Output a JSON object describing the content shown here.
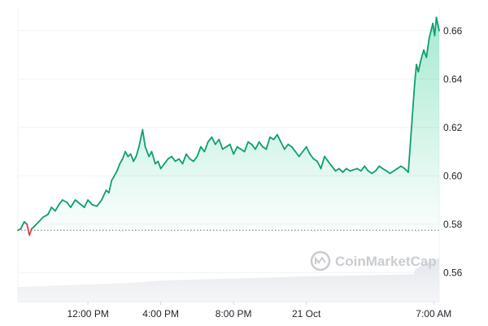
{
  "chart_data": {
    "type": "area",
    "title": "",
    "xlabel": "",
    "ylabel": "",
    "x_ticks": [
      "12:00 PM",
      "4:00 PM",
      "8:00 PM",
      "21 Oct",
      "7:00 AM"
    ],
    "x_tick_hours": [
      12,
      16,
      20,
      24,
      31
    ],
    "x_range_hours": [
      8.15,
      31.3
    ],
    "y_ticks": [
      "0.56",
      "0.58",
      "0.60",
      "0.62",
      "0.64",
      "0.66"
    ],
    "ylim": [
      0.548,
      0.67
    ],
    "baseline": 0.5775,
    "grid": true,
    "colors": {
      "up": "#16c784",
      "down": "#ea3943",
      "line_up": "#0e9f6e"
    },
    "series": [
      {
        "x": [
          8.15,
          8.3,
          8.5,
          8.65,
          8.78,
          8.9,
          9.1,
          9.3,
          9.55,
          9.8,
          10.0,
          10.2,
          10.4,
          10.6,
          10.85,
          11.05,
          11.3,
          11.55,
          11.8,
          12.0,
          12.25,
          12.5,
          12.75,
          13.0,
          13.15,
          13.3,
          13.45,
          13.6,
          13.75,
          13.9,
          14.05,
          14.2,
          14.35,
          14.5,
          14.65,
          14.8,
          15.0,
          15.15,
          15.35,
          15.5,
          15.7,
          15.85,
          16.0,
          16.2,
          16.4,
          16.6,
          16.8,
          17.0,
          17.2,
          17.4,
          17.6,
          17.8,
          18.0,
          18.2,
          18.4,
          18.6,
          18.8,
          19.0,
          19.2,
          19.4,
          19.6,
          19.8,
          20.0,
          20.2,
          20.4,
          20.6,
          20.8,
          21.0,
          21.2,
          21.4,
          21.6,
          21.8,
          22.0,
          22.2,
          22.4,
          22.6,
          22.8,
          23.0,
          23.2,
          23.4,
          23.6,
          23.8,
          24.0,
          24.2,
          24.4,
          24.6,
          24.8,
          25.0,
          25.2,
          25.4,
          25.6,
          25.8,
          26.0,
          26.2,
          26.4,
          26.6,
          26.8,
          27.0,
          27.2,
          27.4,
          27.6,
          27.8,
          28.0,
          28.2,
          28.4,
          28.6,
          28.8,
          29.0,
          29.2,
          29.4,
          29.6,
          29.8,
          29.95,
          30.05,
          30.15,
          30.3,
          30.45,
          30.6,
          30.75,
          30.85,
          30.95,
          31.05,
          31.15,
          31.3
        ],
        "y": [
          0.5775,
          0.578,
          0.581,
          0.58,
          0.5755,
          0.578,
          0.5795,
          0.581,
          0.583,
          0.584,
          0.587,
          0.5855,
          0.588,
          0.59,
          0.589,
          0.587,
          0.59,
          0.5885,
          0.587,
          0.59,
          0.588,
          0.5875,
          0.59,
          0.594,
          0.593,
          0.598,
          0.6,
          0.602,
          0.605,
          0.607,
          0.61,
          0.608,
          0.609,
          0.606,
          0.608,
          0.612,
          0.619,
          0.612,
          0.608,
          0.61,
          0.605,
          0.606,
          0.603,
          0.605,
          0.607,
          0.608,
          0.606,
          0.607,
          0.605,
          0.609,
          0.607,
          0.606,
          0.608,
          0.612,
          0.61,
          0.614,
          0.616,
          0.613,
          0.615,
          0.611,
          0.612,
          0.613,
          0.609,
          0.612,
          0.611,
          0.61,
          0.614,
          0.613,
          0.611,
          0.614,
          0.612,
          0.611,
          0.616,
          0.615,
          0.617,
          0.614,
          0.611,
          0.613,
          0.612,
          0.61,
          0.608,
          0.61,
          0.612,
          0.609,
          0.607,
          0.606,
          0.603,
          0.608,
          0.606,
          0.604,
          0.602,
          0.603,
          0.6015,
          0.603,
          0.602,
          0.6025,
          0.603,
          0.602,
          0.604,
          0.602,
          0.601,
          0.602,
          0.604,
          0.603,
          0.602,
          0.601,
          0.602,
          0.603,
          0.604,
          0.603,
          0.6015,
          0.622,
          0.638,
          0.646,
          0.643,
          0.648,
          0.652,
          0.649,
          0.657,
          0.66,
          0.663,
          0.658,
          0.6655,
          0.66
        ]
      }
    ],
    "volume": {
      "x": [
        8.15,
        10,
        12,
        14,
        16,
        18,
        20,
        22,
        24,
        26,
        28,
        29.9,
        30.0,
        30.5,
        31.3
      ],
      "v": [
        0.1,
        0.14,
        0.18,
        0.22,
        0.3,
        0.34,
        0.37,
        0.4,
        0.44,
        0.46,
        0.48,
        0.5,
        0.66,
        0.85,
        1.0
      ]
    }
  },
  "watermark": {
    "text": "CoinMarketCap"
  }
}
